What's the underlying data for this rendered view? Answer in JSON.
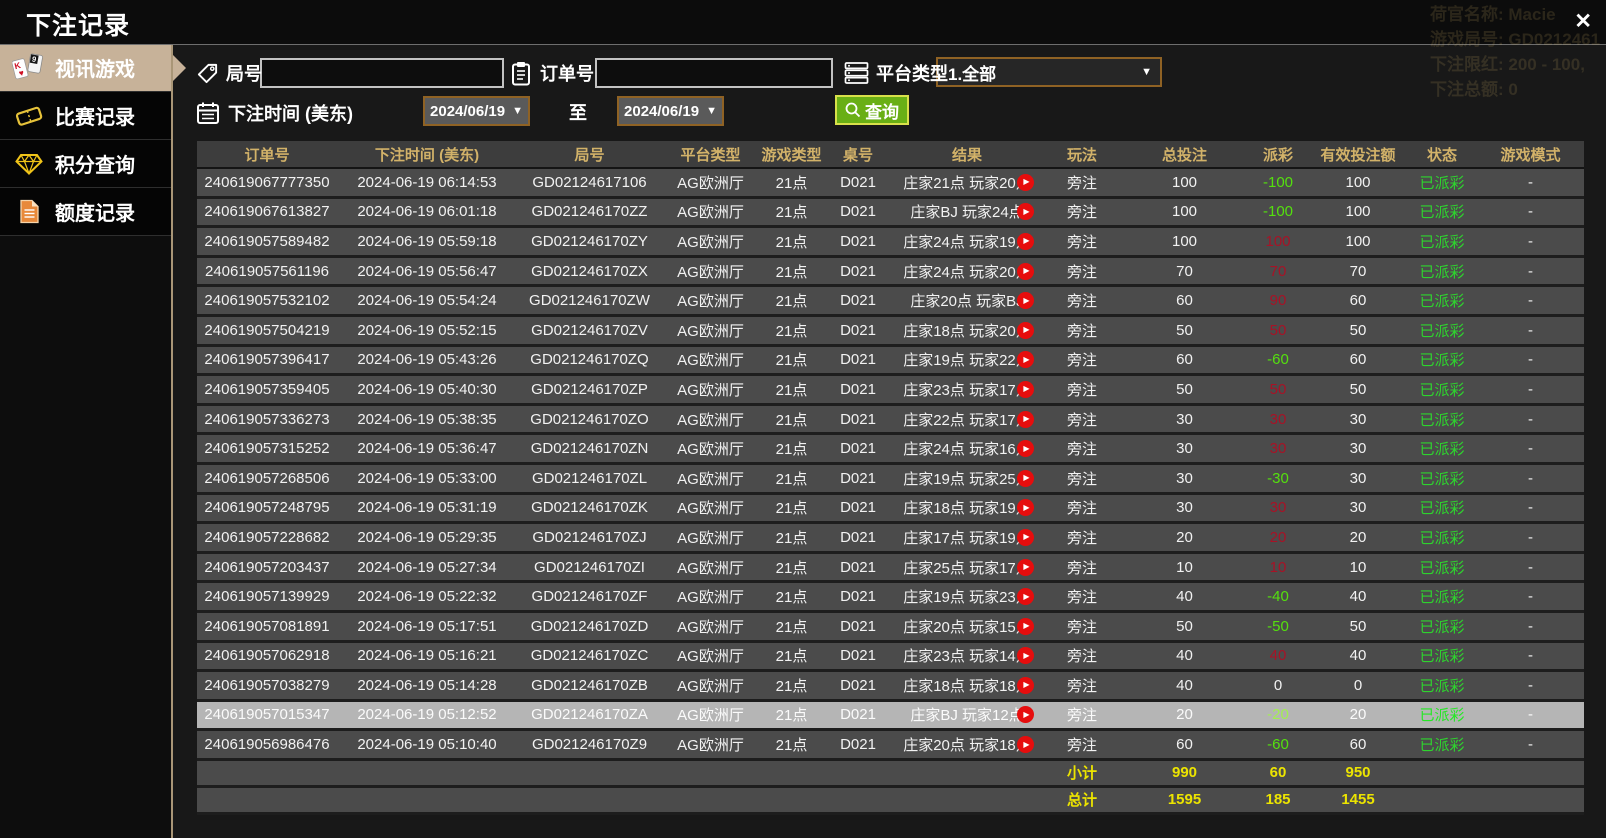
{
  "title_bar": {
    "title": "下注记录",
    "close_glyph": "✕"
  },
  "ghost_overlay": {
    "lines": [
      "荷官名称: Macie",
      "游戏局号: GD0212461",
      "下注限红: 200 - 100,",
      "下注总额: 0"
    ]
  },
  "sidebar": {
    "items": [
      {
        "label": "视讯游戏",
        "icon": "playing-cards-icon",
        "selected": true
      },
      {
        "label": "比赛记录",
        "icon": "ticket-icon",
        "selected": false
      },
      {
        "label": "积分查询",
        "icon": "diamond-icon",
        "selected": false
      },
      {
        "label": "额度记录",
        "icon": "document-icon",
        "selected": false
      }
    ]
  },
  "filters": {
    "round_label": "局号",
    "order_label": "订单号",
    "platform_label": "平台类型",
    "platform_value": "1.全部",
    "time_label": "下注时间 (美东)",
    "date_from": "2024/06/19",
    "date_to": "2024/06/19",
    "to_label": "至",
    "query_label": "查询",
    "arrow_glyph": "▼",
    "round_value": "",
    "order_value": ""
  },
  "table": {
    "play_glyph": "▶",
    "headers": [
      "订单号",
      "下注时间 (美东)",
      "局号",
      "平台类型",
      "游戏类型",
      "桌号",
      "结果",
      "玩法",
      "总投注",
      "派彩",
      "有效投注额",
      "状态",
      "游戏模式"
    ],
    "rows": [
      {
        "order": "240619067777350",
        "time": "2024-06-19 06:14:53",
        "round": "GD02124617106",
        "platform": "AG欧洲厅",
        "game_type": "21点",
        "table_no": "D021",
        "result": "庄家21点 玩家20点",
        "play": "旁注",
        "total_bet": "100",
        "payout": "-100",
        "payout_tone": "neg",
        "valid_bet": "100",
        "status": "已派彩",
        "mode": "-",
        "highlighted": false
      },
      {
        "order": "240619067613827",
        "time": "2024-06-19 06:01:18",
        "round": "GD021246170ZZ",
        "platform": "AG欧洲厅",
        "game_type": "21点",
        "table_no": "D021",
        "result": "庄家BJ 玩家24点",
        "play": "旁注",
        "total_bet": "100",
        "payout": "-100",
        "payout_tone": "neg",
        "valid_bet": "100",
        "status": "已派彩",
        "mode": "-",
        "highlighted": false
      },
      {
        "order": "240619057589482",
        "time": "2024-06-19 05:59:18",
        "round": "GD021246170ZY",
        "platform": "AG欧洲厅",
        "game_type": "21点",
        "table_no": "D021",
        "result": "庄家24点 玩家19点",
        "play": "旁注",
        "total_bet": "100",
        "payout": "100",
        "payout_tone": "pos",
        "valid_bet": "100",
        "status": "已派彩",
        "mode": "-",
        "highlighted": false
      },
      {
        "order": "240619057561196",
        "time": "2024-06-19 05:56:47",
        "round": "GD021246170ZX",
        "platform": "AG欧洲厅",
        "game_type": "21点",
        "table_no": "D021",
        "result": "庄家24点 玩家20点",
        "play": "旁注",
        "total_bet": "70",
        "payout": "70",
        "payout_tone": "pos",
        "valid_bet": "70",
        "status": "已派彩",
        "mode": "-",
        "highlighted": false
      },
      {
        "order": "240619057532102",
        "time": "2024-06-19 05:54:24",
        "round": "GD021246170ZW",
        "platform": "AG欧洲厅",
        "game_type": "21点",
        "table_no": "D021",
        "result": "庄家20点 玩家BJ",
        "play": "旁注",
        "total_bet": "60",
        "payout": "90",
        "payout_tone": "pos",
        "valid_bet": "60",
        "status": "已派彩",
        "mode": "-",
        "highlighted": false
      },
      {
        "order": "240619057504219",
        "time": "2024-06-19 05:52:15",
        "round": "GD021246170ZV",
        "platform": "AG欧洲厅",
        "game_type": "21点",
        "table_no": "D021",
        "result": "庄家18点 玩家20点",
        "play": "旁注",
        "total_bet": "50",
        "payout": "50",
        "payout_tone": "pos",
        "valid_bet": "50",
        "status": "已派彩",
        "mode": "-",
        "highlighted": false
      },
      {
        "order": "240619057396417",
        "time": "2024-06-19 05:43:26",
        "round": "GD021246170ZQ",
        "platform": "AG欧洲厅",
        "game_type": "21点",
        "table_no": "D021",
        "result": "庄家19点 玩家22点",
        "play": "旁注",
        "total_bet": "60",
        "payout": "-60",
        "payout_tone": "neg",
        "valid_bet": "60",
        "status": "已派彩",
        "mode": "-",
        "highlighted": false
      },
      {
        "order": "240619057359405",
        "time": "2024-06-19 05:40:30",
        "round": "GD021246170ZP",
        "platform": "AG欧洲厅",
        "game_type": "21点",
        "table_no": "D021",
        "result": "庄家23点 玩家17点",
        "play": "旁注",
        "total_bet": "50",
        "payout": "50",
        "payout_tone": "pos",
        "valid_bet": "50",
        "status": "已派彩",
        "mode": "-",
        "highlighted": false
      },
      {
        "order": "240619057336273",
        "time": "2024-06-19 05:38:35",
        "round": "GD021246170ZO",
        "platform": "AG欧洲厅",
        "game_type": "21点",
        "table_no": "D021",
        "result": "庄家22点 玩家17点",
        "play": "旁注",
        "total_bet": "30",
        "payout": "30",
        "payout_tone": "pos",
        "valid_bet": "30",
        "status": "已派彩",
        "mode": "-",
        "highlighted": false
      },
      {
        "order": "240619057315252",
        "time": "2024-06-19 05:36:47",
        "round": "GD021246170ZN",
        "platform": "AG欧洲厅",
        "game_type": "21点",
        "table_no": "D021",
        "result": "庄家24点 玩家16点",
        "play": "旁注",
        "total_bet": "30",
        "payout": "30",
        "payout_tone": "pos",
        "valid_bet": "30",
        "status": "已派彩",
        "mode": "-",
        "highlighted": false
      },
      {
        "order": "240619057268506",
        "time": "2024-06-19 05:33:00",
        "round": "GD021246170ZL",
        "platform": "AG欧洲厅",
        "game_type": "21点",
        "table_no": "D021",
        "result": "庄家19点 玩家25点",
        "play": "旁注",
        "total_bet": "30",
        "payout": "-30",
        "payout_tone": "neg",
        "valid_bet": "30",
        "status": "已派彩",
        "mode": "-",
        "highlighted": false
      },
      {
        "order": "240619057248795",
        "time": "2024-06-19 05:31:19",
        "round": "GD021246170ZK",
        "platform": "AG欧洲厅",
        "game_type": "21点",
        "table_no": "D021",
        "result": "庄家18点 玩家19点",
        "play": "旁注",
        "total_bet": "30",
        "payout": "30",
        "payout_tone": "pos",
        "valid_bet": "30",
        "status": "已派彩",
        "mode": "-",
        "highlighted": false
      },
      {
        "order": "240619057228682",
        "time": "2024-06-19 05:29:35",
        "round": "GD021246170ZJ",
        "platform": "AG欧洲厅",
        "game_type": "21点",
        "table_no": "D021",
        "result": "庄家17点 玩家19点",
        "play": "旁注",
        "total_bet": "20",
        "payout": "20",
        "payout_tone": "pos",
        "valid_bet": "20",
        "status": "已派彩",
        "mode": "-",
        "highlighted": false
      },
      {
        "order": "240619057203437",
        "time": "2024-06-19 05:27:34",
        "round": "GD021246170ZI",
        "platform": "AG欧洲厅",
        "game_type": "21点",
        "table_no": "D021",
        "result": "庄家25点 玩家17点",
        "play": "旁注",
        "total_bet": "10",
        "payout": "10",
        "payout_tone": "pos",
        "valid_bet": "10",
        "status": "已派彩",
        "mode": "-",
        "highlighted": false
      },
      {
        "order": "240619057139929",
        "time": "2024-06-19 05:22:32",
        "round": "GD021246170ZF",
        "platform": "AG欧洲厅",
        "game_type": "21点",
        "table_no": "D021",
        "result": "庄家19点 玩家23点",
        "play": "旁注",
        "total_bet": "40",
        "payout": "-40",
        "payout_tone": "neg",
        "valid_bet": "40",
        "status": "已派彩",
        "mode": "-",
        "highlighted": false
      },
      {
        "order": "240619057081891",
        "time": "2024-06-19 05:17:51",
        "round": "GD021246170ZD",
        "platform": "AG欧洲厅",
        "game_type": "21点",
        "table_no": "D021",
        "result": "庄家20点 玩家15点",
        "play": "旁注",
        "total_bet": "50",
        "payout": "-50",
        "payout_tone": "neg",
        "valid_bet": "50",
        "status": "已派彩",
        "mode": "-",
        "highlighted": false
      },
      {
        "order": "240619057062918",
        "time": "2024-06-19 05:16:21",
        "round": "GD021246170ZC",
        "platform": "AG欧洲厅",
        "game_type": "21点",
        "table_no": "D021",
        "result": "庄家23点 玩家14点",
        "play": "旁注",
        "total_bet": "40",
        "payout": "40",
        "payout_tone": "pos",
        "valid_bet": "40",
        "status": "已派彩",
        "mode": "-",
        "highlighted": false
      },
      {
        "order": "240619057038279",
        "time": "2024-06-19 05:14:28",
        "round": "GD021246170ZB",
        "platform": "AG欧洲厅",
        "game_type": "21点",
        "table_no": "D021",
        "result": "庄家18点 玩家18点",
        "play": "旁注",
        "total_bet": "40",
        "payout": "0",
        "payout_tone": "zero",
        "valid_bet": "0",
        "status": "已派彩",
        "mode": "-",
        "highlighted": false
      },
      {
        "order": "240619057015347",
        "time": "2024-06-19 05:12:52",
        "round": "GD021246170ZA",
        "platform": "AG欧洲厅",
        "game_type": "21点",
        "table_no": "D021",
        "result": "庄家BJ 玩家12点",
        "play": "旁注",
        "total_bet": "20",
        "payout": "-20",
        "payout_tone": "neg",
        "valid_bet": "20",
        "status": "已派彩",
        "mode": "-",
        "highlighted": true
      },
      {
        "order": "240619056986476",
        "time": "2024-06-19 05:10:40",
        "round": "GD021246170Z9",
        "platform": "AG欧洲厅",
        "game_type": "21点",
        "table_no": "D021",
        "result": "庄家20点 玩家18点",
        "play": "旁注",
        "total_bet": "60",
        "payout": "-60",
        "payout_tone": "neg",
        "valid_bet": "60",
        "status": "已派彩",
        "mode": "-",
        "highlighted": false
      }
    ],
    "subtotal": {
      "label": "小计",
      "total_bet": "990",
      "payout": "60",
      "valid_bet": "950"
    },
    "total": {
      "label": "总计",
      "total_bet": "1595",
      "payout": "185",
      "valid_bet": "1455"
    }
  },
  "colors": {
    "header_gold": "#d2b269",
    "row_bg": "#4b4b4b",
    "highlight_row_bg": "#b5b5b5",
    "payout_positive_red": "#a81226",
    "payout_negative_green": "#54e00e",
    "status_green": "#2ed42e",
    "summary_yellow": "#ece400",
    "selected_tab_bg": "#c7b299",
    "query_button_green": "#69af15",
    "dropdown_border_orange": "#8f6224",
    "play_icon_red": "#e60d0d"
  }
}
